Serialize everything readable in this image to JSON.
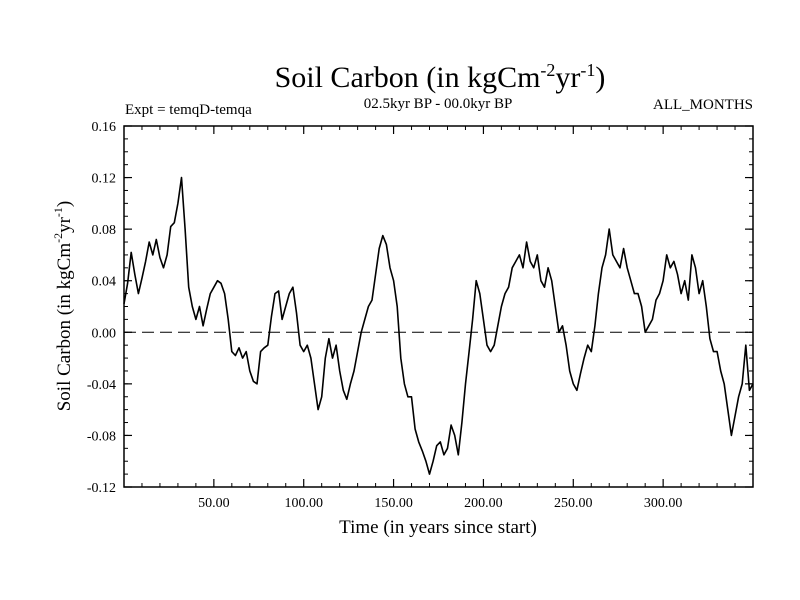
{
  "chart_data": {
    "type": "line",
    "title": {
      "main": "Soil Carbon (in kgCm",
      "exp1": "-2",
      "mid": "yr",
      "exp2": "-1",
      "close": ")"
    },
    "subtitle_left": "Expt = temqD-temqa",
    "subtitle_center": "02.5kyr BP - 00.0kyr BP",
    "subtitle_right": "ALL_MONTHS",
    "xlabel": "Time (in years since start)",
    "ylabel": {
      "main": "Soil Carbon (in kgCm",
      "exp1": "-2",
      "mid": "yr",
      "exp2": "-1",
      "close": ")"
    },
    "xlim": [
      0,
      350
    ],
    "ylim": [
      -0.12,
      0.16
    ],
    "x_tick_values": [
      50,
      100,
      150,
      200,
      250,
      300
    ],
    "x_tick_labels": [
      "50.00",
      "100.00",
      "150.00",
      "200.00",
      "250.00",
      "300.00"
    ],
    "y_tick_values": [
      0.16,
      0.12,
      0.08,
      0.04,
      0.0,
      -0.04,
      -0.08,
      -0.12
    ],
    "y_tick_labels": [
      "0.16",
      "0.12",
      "0.08",
      "0.04",
      "0.00",
      "-0.04",
      "-0.08",
      "-0.12"
    ],
    "reference_line": {
      "y": 0.0,
      "style": "dashed"
    },
    "series": [
      {
        "name": "temqD-temqa",
        "x": [
          0,
          2,
          4,
          6,
          8,
          10,
          12,
          14,
          16,
          18,
          20,
          22,
          24,
          26,
          28,
          30,
          32,
          34,
          36,
          38,
          40,
          42,
          44,
          46,
          48,
          50,
          52,
          54,
          56,
          58,
          60,
          62,
          64,
          66,
          68,
          70,
          72,
          74,
          76,
          78,
          80,
          82,
          84,
          86,
          88,
          90,
          92,
          94,
          96,
          98,
          100,
          102,
          104,
          106,
          108,
          110,
          112,
          114,
          116,
          118,
          120,
          122,
          124,
          126,
          128,
          130,
          132,
          134,
          136,
          138,
          140,
          142,
          144,
          146,
          148,
          150,
          152,
          154,
          156,
          158,
          160,
          162,
          164,
          166,
          168,
          170,
          172,
          174,
          176,
          178,
          180,
          182,
          184,
          186,
          188,
          190,
          192,
          194,
          196,
          198,
          200,
          202,
          204,
          206,
          208,
          210,
          212,
          214,
          216,
          218,
          220,
          222,
          224,
          226,
          228,
          230,
          232,
          234,
          236,
          238,
          240,
          242,
          244,
          246,
          248,
          250,
          252,
          254,
          256,
          258,
          260,
          262,
          264,
          266,
          268,
          270,
          272,
          274,
          276,
          278,
          280,
          282,
          284,
          286,
          288,
          290,
          292,
          294,
          296,
          298,
          300,
          302,
          304,
          306,
          308,
          310,
          312,
          314,
          316,
          318,
          320,
          322,
          324,
          326,
          328,
          330,
          332,
          334,
          336,
          338,
          340,
          342,
          344,
          346,
          348,
          350
        ],
        "y": [
          0.022,
          0.038,
          0.062,
          0.045,
          0.03,
          0.042,
          0.055,
          0.07,
          0.06,
          0.072,
          0.058,
          0.05,
          0.06,
          0.082,
          0.085,
          0.1,
          0.12,
          0.08,
          0.035,
          0.02,
          0.01,
          0.02,
          0.005,
          0.018,
          0.03,
          0.035,
          0.04,
          0.038,
          0.03,
          0.01,
          -0.015,
          -0.018,
          -0.012,
          -0.02,
          -0.015,
          -0.03,
          -0.038,
          -0.04,
          -0.015,
          -0.012,
          -0.01,
          0.012,
          0.03,
          0.032,
          0.01,
          0.02,
          0.03,
          0.035,
          0.015,
          -0.01,
          -0.015,
          -0.01,
          -0.02,
          -0.04,
          -0.06,
          -0.05,
          -0.02,
          -0.005,
          -0.02,
          -0.01,
          -0.03,
          -0.045,
          -0.052,
          -0.04,
          -0.03,
          -0.015,
          0.0,
          0.01,
          0.02,
          0.025,
          0.045,
          0.065,
          0.075,
          0.068,
          0.05,
          0.04,
          0.02,
          -0.02,
          -0.04,
          -0.05,
          -0.05,
          -0.075,
          -0.085,
          -0.092,
          -0.1,
          -0.11,
          -0.1,
          -0.088,
          -0.085,
          -0.095,
          -0.09,
          -0.072,
          -0.08,
          -0.095,
          -0.07,
          -0.04,
          -0.015,
          0.01,
          0.04,
          0.03,
          0.01,
          -0.01,
          -0.015,
          -0.01,
          0.005,
          0.02,
          0.03,
          0.035,
          0.05,
          0.055,
          0.06,
          0.05,
          0.07,
          0.055,
          0.05,
          0.06,
          0.04,
          0.035,
          0.05,
          0.04,
          0.02,
          0.0,
          0.005,
          -0.01,
          -0.03,
          -0.04,
          -0.045,
          -0.032,
          -0.02,
          -0.01,
          -0.015,
          0.005,
          0.03,
          0.05,
          0.06,
          0.08,
          0.06,
          0.055,
          0.05,
          0.065,
          0.05,
          0.04,
          0.03,
          0.03,
          0.02,
          0.0,
          0.005,
          0.01,
          0.025,
          0.03,
          0.04,
          0.06,
          0.05,
          0.055,
          0.045,
          0.03,
          0.04,
          0.025,
          0.06,
          0.05,
          0.03,
          0.04,
          0.02,
          -0.005,
          -0.015,
          -0.015,
          -0.03,
          -0.04,
          -0.06,
          -0.08,
          -0.065,
          -0.05,
          -0.04,
          -0.01,
          -0.045,
          -0.04
        ]
      }
    ]
  }
}
